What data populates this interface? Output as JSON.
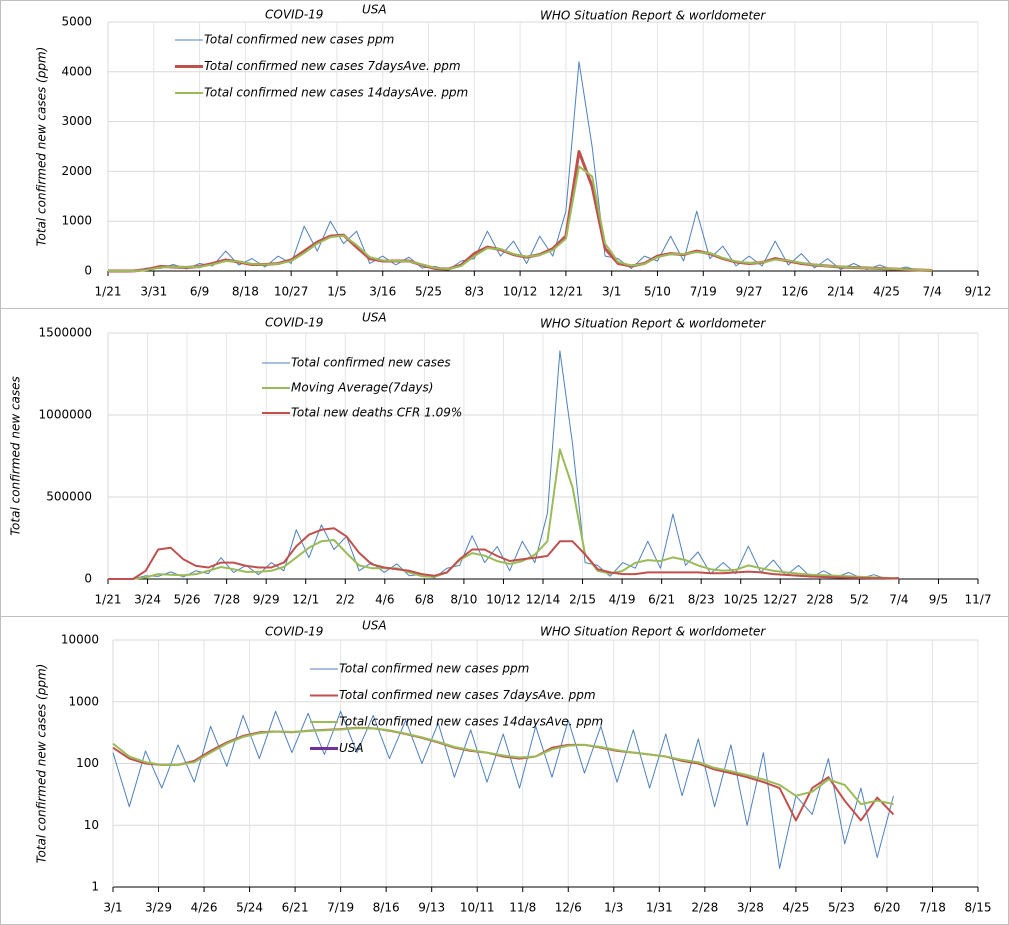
{
  "chart_data": [
    {
      "type": "line",
      "title": "COVID-19",
      "subtitle": "USA",
      "source": "WHO Situation Report & worldometer",
      "ylabel": "Total confirmed new cases (ppm)",
      "x": [
        0,
        20,
        40,
        60,
        80,
        100,
        120,
        140,
        160,
        180,
        200,
        220,
        240,
        260,
        280,
        300,
        320,
        340,
        360,
        380,
        400,
        420,
        440,
        460,
        480,
        500,
        520,
        540,
        560,
        580,
        600,
        620,
        640,
        660,
        680,
        700,
        720,
        740,
        760,
        780,
        800,
        820,
        840,
        860,
        880,
        900,
        920,
        940,
        960,
        980,
        1000,
        1020,
        1040,
        1060,
        1080,
        1100,
        1120,
        1140,
        1160,
        1180,
        1200,
        1220,
        1240,
        1260
      ],
      "xlim": [
        0,
        1330
      ],
      "xticks": [
        {
          "value": 0,
          "label": "1/21"
        },
        {
          "value": 70,
          "label": "3/31"
        },
        {
          "value": 140,
          "label": "6/9"
        },
        {
          "value": 210,
          "label": "8/18"
        },
        {
          "value": 280,
          "label": "10/27"
        },
        {
          "value": 350,
          "label": "1/5"
        },
        {
          "value": 420,
          "label": "3/16"
        },
        {
          "value": 490,
          "label": "5/25"
        },
        {
          "value": 560,
          "label": "8/3"
        },
        {
          "value": 630,
          "label": "10/12"
        },
        {
          "value": 700,
          "label": "12/21"
        },
        {
          "value": 770,
          "label": "3/1"
        },
        {
          "value": 840,
          "label": "5/10"
        },
        {
          "value": 910,
          "label": "7/19"
        },
        {
          "value": 980,
          "label": "9/27"
        },
        {
          "value": 1050,
          "label": "12/6"
        },
        {
          "value": 1120,
          "label": "2/14"
        },
        {
          "value": 1190,
          "label": "4/25"
        },
        {
          "value": 1260,
          "label": "7/4"
        },
        {
          "value": 1330,
          "label": "9/12"
        }
      ],
      "ylim": [
        0,
        5000
      ],
      "yticks": [
        0,
        1000,
        2000,
        3000,
        4000,
        5000
      ],
      "grid": true,
      "series": [
        {
          "name": "Total confirmed new cases ppm",
          "color": "#4f81bd",
          "values": [
            0,
            0,
            5,
            60,
            50,
            130,
            40,
            150,
            100,
            400,
            120,
            250,
            80,
            300,
            150,
            900,
            400,
            1000,
            550,
            800,
            150,
            300,
            120,
            280,
            60,
            90,
            20,
            200,
            250,
            800,
            300,
            600,
            150,
            700,
            300,
            1200,
            4200,
            2500,
            300,
            250,
            50,
            300,
            200,
            700,
            200,
            1200,
            250,
            500,
            100,
            300,
            100,
            600,
            120,
            350,
            60,
            250,
            30,
            150,
            30,
            120,
            15,
            80,
            5,
            30
          ]
        },
        {
          "name": "Total confirmed new cases 7daysAve. ppm",
          "color": "#c0504d",
          "values": [
            0,
            0,
            2,
            30,
            90,
            80,
            70,
            90,
            150,
            220,
            180,
            130,
            130,
            150,
            220,
            400,
            580,
            700,
            720,
            480,
            250,
            200,
            200,
            200,
            120,
            50,
            40,
            120,
            350,
            480,
            430,
            330,
            280,
            330,
            450,
            700,
            2400,
            1700,
            450,
            150,
            100,
            150,
            300,
            350,
            330,
            400,
            350,
            250,
            180,
            150,
            170,
            250,
            200,
            150,
            120,
            100,
            80,
            70,
            60,
            50,
            40,
            30,
            20,
            10
          ]
        },
        {
          "name": "Total confirmed new cases 14daysAve. ppm",
          "color": "#9bbb59",
          "values": [
            0,
            0,
            1,
            20,
            70,
            85,
            75,
            85,
            130,
            200,
            190,
            140,
            130,
            145,
            200,
            360,
            550,
            680,
            710,
            520,
            280,
            210,
            200,
            195,
            130,
            60,
            40,
            100,
            300,
            460,
            440,
            340,
            290,
            320,
            420,
            650,
            2100,
            1900,
            550,
            180,
            110,
            140,
            280,
            340,
            340,
            380,
            360,
            260,
            190,
            160,
            170,
            230,
            210,
            160,
            125,
            100,
            85,
            70,
            60,
            50,
            42,
            32,
            22,
            12
          ]
        }
      ]
    },
    {
      "type": "line",
      "title": "COVID-19",
      "subtitle": "USA",
      "source": "WHO Situation Report & worldometer",
      "ylabel": "Total confirmed new cases",
      "x": [
        0,
        20,
        40,
        60,
        80,
        100,
        120,
        140,
        160,
        180,
        200,
        220,
        240,
        260,
        280,
        300,
        320,
        340,
        360,
        380,
        400,
        420,
        440,
        460,
        480,
        500,
        520,
        540,
        560,
        580,
        600,
        620,
        640,
        660,
        680,
        700,
        720,
        740,
        760,
        780,
        800,
        820,
        840,
        860,
        880,
        900,
        920,
        940,
        960,
        980,
        1000,
        1020,
        1040,
        1060,
        1080,
        1100,
        1120,
        1140,
        1160,
        1180,
        1200,
        1220,
        1240,
        1260
      ],
      "xlim": [
        0,
        1386
      ],
      "xticks": [
        {
          "value": 0,
          "label": "1/21"
        },
        {
          "value": 63,
          "label": "3/24"
        },
        {
          "value": 126,
          "label": "5/26"
        },
        {
          "value": 189,
          "label": "7/28"
        },
        {
          "value": 252,
          "label": "9/29"
        },
        {
          "value": 315,
          "label": "12/1"
        },
        {
          "value": 378,
          "label": "2/2"
        },
        {
          "value": 441,
          "label": "4/6"
        },
        {
          "value": 504,
          "label": "6/8"
        },
        {
          "value": 567,
          "label": "8/10"
        },
        {
          "value": 630,
          "label": "10/12"
        },
        {
          "value": 693,
          "label": "12/14"
        },
        {
          "value": 756,
          "label": "2/15"
        },
        {
          "value": 819,
          "label": "4/19"
        },
        {
          "value": 882,
          "label": "6/21"
        },
        {
          "value": 945,
          "label": "8/23"
        },
        {
          "value": 1008,
          "label": "10/25"
        },
        {
          "value": 1071,
          "label": "12/27"
        },
        {
          "value": 1134,
          "label": "2/28"
        },
        {
          "value": 1197,
          "label": "5/2"
        },
        {
          "value": 1260,
          "label": "7/4"
        },
        {
          "value": 1323,
          "label": "9/5"
        },
        {
          "value": 1386,
          "label": "11/7"
        }
      ],
      "ylim": [
        0,
        1500000
      ],
      "yticks": [
        0,
        500000,
        1000000,
        1500000
      ],
      "grid": true,
      "series": [
        {
          "name": "Total confirmed new cases",
          "color": "#4f81bd",
          "values": [
            0,
            0,
            1500,
            20000,
            16000,
            43000,
            13000,
            50000,
            33000,
            130000,
            40000,
            83000,
            26000,
            100000,
            50000,
            300000,
            130000,
            330000,
            180000,
            260000,
            50000,
            100000,
            40000,
            92000,
            20000,
            30000,
            7000,
            66000,
            83000,
            264000,
            100000,
            198000,
            50000,
            230000,
            100000,
            400000,
            1390000,
            825000,
            100000,
            83000,
            17000,
            100000,
            66000,
            230000,
            66000,
            396000,
            83000,
            165000,
            33000,
            100000,
            33000,
            200000,
            40000,
            115000,
            20000,
            83000,
            10000,
            50000,
            10000,
            40000,
            5000,
            26000,
            2000,
            10000
          ]
        },
        {
          "name": "Moving Average(7days)",
          "color": "#9bbb59",
          "values": [
            0,
            0,
            700,
            10000,
            30000,
            26000,
            23000,
            30000,
            50000,
            73000,
            60000,
            43000,
            43000,
            50000,
            73000,
            132000,
            190000,
            230000,
            238000,
            158000,
            83000,
            66000,
            66000,
            66000,
            40000,
            17000,
            13000,
            40000,
            115000,
            158000,
            142000,
            109000,
            92000,
            109000,
            148000,
            230000,
            790000,
            560000,
            150000,
            50000,
            33000,
            50000,
            99000,
            115000,
            109000,
            132000,
            115000,
            83000,
            60000,
            50000,
            56000,
            83000,
            66000,
            50000,
            40000,
            33000,
            26000,
            23000,
            20000,
            17000,
            13000,
            10000,
            7000,
            3000
          ]
        },
        {
          "name": "Total new deaths CFR 1.09%",
          "color": "#c0504d",
          "values": [
            0,
            0,
            0,
            50000,
            180000,
            190000,
            120000,
            80000,
            70000,
            100000,
            100000,
            80000,
            70000,
            70000,
            100000,
            200000,
            270000,
            300000,
            310000,
            260000,
            160000,
            90000,
            70000,
            60000,
            50000,
            30000,
            20000,
            40000,
            120000,
            180000,
            180000,
            140000,
            110000,
            120000,
            130000,
            140000,
            230000,
            230000,
            150000,
            60000,
            40000,
            30000,
            30000,
            40000,
            40000,
            40000,
            40000,
            40000,
            35000,
            35000,
            40000,
            45000,
            40000,
            30000,
            25000,
            20000,
            15000,
            12000,
            10000,
            8000,
            6000,
            5000,
            4000,
            3000
          ]
        }
      ]
    },
    {
      "type": "line",
      "title": "COVID-19",
      "subtitle": "USA",
      "source": "WHO Situation Report & worldometer",
      "ylabel": "Total confirmed new cases (ppm)",
      "log_scale": true,
      "x": [
        0,
        10,
        20,
        30,
        40,
        50,
        60,
        70,
        80,
        90,
        100,
        110,
        120,
        130,
        140,
        150,
        160,
        170,
        180,
        190,
        200,
        210,
        220,
        230,
        240,
        250,
        260,
        270,
        280,
        290,
        300,
        310,
        320,
        330,
        340,
        350,
        360,
        370,
        380,
        390,
        400,
        410,
        420,
        430,
        440,
        450,
        460,
        470,
        480
      ],
      "xlim": [
        0,
        532
      ],
      "xticks": [
        {
          "value": 0,
          "label": "3/1"
        },
        {
          "value": 28,
          "label": "3/29"
        },
        {
          "value": 56,
          "label": "4/26"
        },
        {
          "value": 84,
          "label": "5/24"
        },
        {
          "value": 112,
          "label": "6/21"
        },
        {
          "value": 140,
          "label": "7/19"
        },
        {
          "value": 168,
          "label": "8/16"
        },
        {
          "value": 196,
          "label": "9/13"
        },
        {
          "value": 224,
          "label": "10/11"
        },
        {
          "value": 252,
          "label": "11/8"
        },
        {
          "value": 280,
          "label": "12/6"
        },
        {
          "value": 308,
          "label": "1/3"
        },
        {
          "value": 336,
          "label": "1/31"
        },
        {
          "value": 364,
          "label": "2/28"
        },
        {
          "value": 392,
          "label": "3/28"
        },
        {
          "value": 420,
          "label": "4/25"
        },
        {
          "value": 448,
          "label": "5/23"
        },
        {
          "value": 476,
          "label": "6/20"
        },
        {
          "value": 504,
          "label": "7/18"
        },
        {
          "value": 532,
          "label": "8/15"
        }
      ],
      "ylim": [
        1,
        10000
      ],
      "yticks": [
        1,
        10,
        100,
        1000,
        10000
      ],
      "grid": true,
      "series": [
        {
          "name": "Total confirmed new cases ppm",
          "color": "#4f81bd",
          "values": [
            150,
            20,
            160,
            40,
            200,
            50,
            400,
            90,
            600,
            120,
            700,
            150,
            650,
            140,
            700,
            150,
            600,
            120,
            500,
            100,
            450,
            60,
            350,
            50,
            300,
            40,
            400,
            60,
            500,
            70,
            400,
            50,
            350,
            40,
            300,
            30,
            250,
            20,
            200,
            10,
            150,
            2,
            30,
            15,
            120,
            5,
            40,
            3,
            30
          ]
        },
        {
          "name": "Total confirmed new cases 7daysAve. ppm",
          "color": "#c0504d",
          "values": [
            180,
            120,
            100,
            95,
            95,
            110,
            160,
            220,
            280,
            320,
            330,
            320,
            340,
            350,
            360,
            380,
            370,
            340,
            300,
            260,
            220,
            180,
            160,
            150,
            130,
            120,
            130,
            180,
            200,
            200,
            180,
            160,
            150,
            140,
            130,
            110,
            100,
            80,
            70,
            60,
            50,
            40,
            12,
            40,
            60,
            25,
            12,
            28,
            15
          ]
        },
        {
          "name": "Total confirmed new cases 14daysAve. ppm",
          "color": "#9bbb59",
          "values": [
            210,
            130,
            105,
            95,
            95,
            105,
            150,
            210,
            270,
            310,
            330,
            325,
            335,
            345,
            355,
            375,
            370,
            345,
            305,
            265,
            225,
            185,
            165,
            150,
            135,
            125,
            130,
            170,
            195,
            200,
            185,
            165,
            150,
            140,
            130,
            115,
            105,
            85,
            75,
            65,
            55,
            45,
            30,
            35,
            55,
            45,
            22,
            25,
            22
          ]
        },
        {
          "name": "USA",
          "color": "#7030a0",
          "values": [
            null,
            null,
            null,
            null,
            null,
            null,
            null,
            null,
            null,
            null,
            null,
            null,
            null,
            null,
            null,
            null,
            null,
            null,
            null,
            null,
            null,
            null,
            null,
            null,
            null,
            null,
            null,
            null,
            null,
            null,
            null,
            null,
            null,
            null,
            null,
            null,
            null,
            null,
            null,
            null,
            null,
            null,
            null,
            null,
            null,
            null,
            null,
            null,
            null
          ]
        }
      ]
    }
  ]
}
